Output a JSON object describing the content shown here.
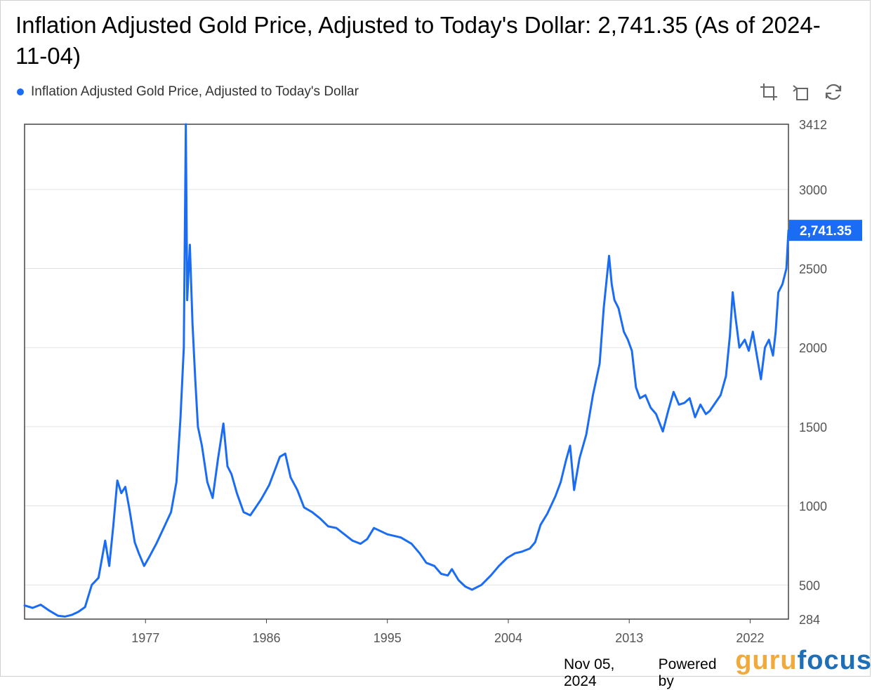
{
  "title": "Inflation Adjusted Gold Price, Adjusted to Today's Dollar: 2,741.35 (As of 2024-11-04)",
  "legend": {
    "label": "Inflation Adjusted Gold Price, Adjusted to Today's Dollar",
    "color": "#1a6cf5"
  },
  "toolbar": {
    "icons": [
      "zoom-icon",
      "undo-zoom-icon",
      "restore-icon"
    ]
  },
  "footer": {
    "date": "Nov 05, 2024",
    "powered_by": "Powered by",
    "brand_part1": "guru",
    "brand_part2": "focus"
  },
  "chart_data": {
    "type": "line",
    "title": "Inflation Adjusted Gold Price, Adjusted to Today's Dollar: 2,741.35 (As of 2024-11-04)",
    "xlabel": "",
    "ylabel": "",
    "xlim": [
      1968.0,
      2024.85
    ],
    "ylim": [
      284,
      3412
    ],
    "y_ticks": [
      284,
      500,
      1000,
      1500,
      2000,
      2500,
      3000,
      3412
    ],
    "x_ticks": [
      1977,
      1986,
      1995,
      2004,
      2013,
      2022
    ],
    "x_tick_labels": [
      "1977",
      "1986",
      "1995",
      "2004",
      "2013",
      "2022"
    ],
    "grid": true,
    "legend_position": "top-left",
    "last_value_label": "2,741.35",
    "series": [
      {
        "name": "Inflation Adjusted Gold Price, Adjusted to Today's Dollar",
        "color": "#1a6cf5",
        "x": [
          1968.0,
          1968.6,
          1969.2,
          1969.8,
          1970.5,
          1971.0,
          1971.5,
          1972.0,
          1972.5,
          1973.0,
          1973.5,
          1974.0,
          1974.3,
          1974.6,
          1974.9,
          1975.2,
          1975.5,
          1975.8,
          1976.2,
          1976.5,
          1976.9,
          1977.3,
          1977.8,
          1978.3,
          1978.9,
          1979.3,
          1979.6,
          1979.85,
          1980.0,
          1980.1,
          1980.3,
          1980.5,
          1980.7,
          1980.9,
          1981.2,
          1981.6,
          1982.0,
          1982.4,
          1982.8,
          1983.1,
          1983.4,
          1983.8,
          1984.3,
          1984.8,
          1985.2,
          1985.6,
          1986.2,
          1986.6,
          1987.0,
          1987.4,
          1987.8,
          1988.3,
          1988.8,
          1989.4,
          1990.0,
          1990.6,
          1991.2,
          1991.8,
          1992.4,
          1993.0,
          1993.5,
          1994.0,
          1995.0,
          1996.0,
          1996.8,
          1997.4,
          1997.9,
          1998.5,
          1999.0,
          1999.5,
          1999.8,
          2000.3,
          2000.8,
          2001.3,
          2002.0,
          2002.7,
          2003.3,
          2003.9,
          2004.5,
          2005.0,
          2005.6,
          2006.0,
          2006.4,
          2006.9,
          2007.5,
          2007.9,
          2008.3,
          2008.6,
          2008.9,
          2009.3,
          2009.8,
          2010.3,
          2010.8,
          2011.1,
          2011.5,
          2011.7,
          2011.9,
          2012.2,
          2012.6,
          2012.9,
          2013.2,
          2013.5,
          2013.8,
          2014.2,
          2014.6,
          2015.0,
          2015.5,
          2015.9,
          2016.3,
          2016.7,
          2017.1,
          2017.5,
          2017.9,
          2018.3,
          2018.7,
          2019.0,
          2019.4,
          2019.8,
          2020.2,
          2020.5,
          2020.7,
          2020.9,
          2021.2,
          2021.6,
          2021.9,
          2022.2,
          2022.5,
          2022.8,
          2023.1,
          2023.4,
          2023.7,
          2023.9,
          2024.1,
          2024.4,
          2024.7,
          2024.85
        ],
        "values": [
          370,
          355,
          375,
          340,
          305,
          300,
          310,
          330,
          360,
          500,
          545,
          780,
          620,
          870,
          1160,
          1080,
          1120,
          980,
          770,
          700,
          620,
          680,
          760,
          850,
          960,
          1150,
          1550,
          2000,
          3412,
          2300,
          2650,
          2150,
          1800,
          1500,
          1380,
          1150,
          1050,
          1300,
          1520,
          1250,
          1200,
          1080,
          960,
          940,
          990,
          1040,
          1130,
          1220,
          1310,
          1330,
          1180,
          1100,
          990,
          960,
          920,
          870,
          860,
          820,
          780,
          760,
          790,
          860,
          820,
          800,
          760,
          700,
          640,
          620,
          570,
          560,
          600,
          530,
          490,
          470,
          500,
          560,
          620,
          670,
          700,
          710,
          730,
          770,
          880,
          950,
          1060,
          1150,
          1290,
          1380,
          1100,
          1300,
          1450,
          1700,
          1900,
          2250,
          2580,
          2400,
          2300,
          2250,
          2100,
          2050,
          1980,
          1750,
          1680,
          1700,
          1620,
          1580,
          1470,
          1600,
          1720,
          1640,
          1650,
          1680,
          1560,
          1640,
          1580,
          1600,
          1650,
          1700,
          1820,
          2080,
          2350,
          2200,
          2000,
          2050,
          1980,
          2100,
          1950,
          1800,
          2000,
          2050,
          1950,
          2100,
          2350,
          2400,
          2500,
          2741.35
        ]
      }
    ]
  }
}
